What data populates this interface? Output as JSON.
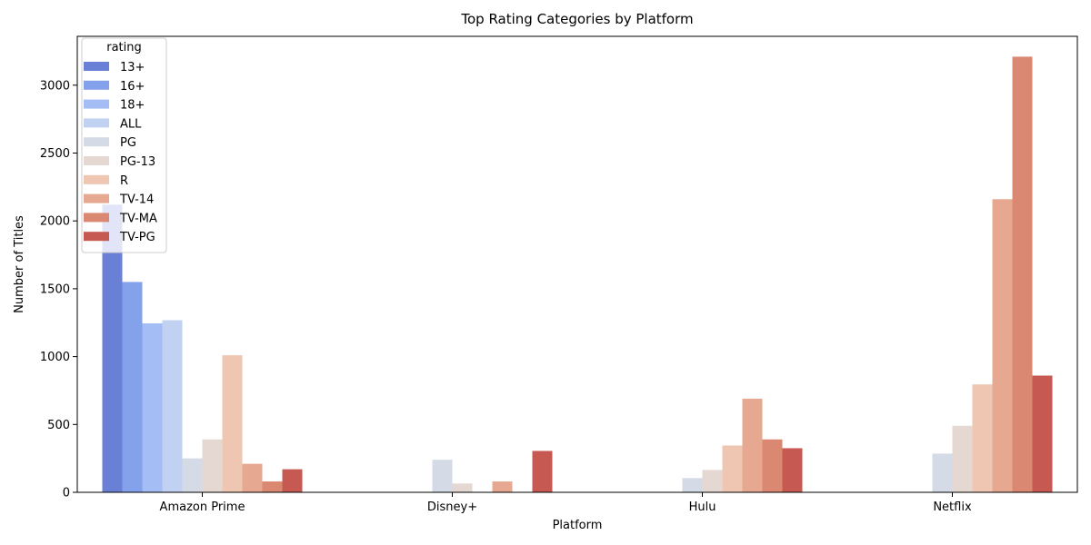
{
  "chart_data": {
    "type": "bar",
    "title": "Top Rating Categories by Platform",
    "xlabel": "Platform",
    "ylabel": "Number of Titles",
    "categories": [
      "Amazon Prime",
      "Disney+",
      "Hulu",
      "Netflix"
    ],
    "ylim": [
      0,
      3360
    ],
    "yticks": [
      0,
      500,
      1000,
      1500,
      2000,
      2500,
      3000
    ],
    "legend": {
      "title": "rating",
      "placement": "top-left"
    },
    "grid": false,
    "series": [
      {
        "name": "13+",
        "color": "#6a7fd6",
        "values": [
          2120,
          0,
          0,
          0
        ]
      },
      {
        "name": "16+",
        "color": "#84a1eb",
        "values": [
          1550,
          0,
          0,
          0
        ]
      },
      {
        "name": "18+",
        "color": "#a4bdf5",
        "values": [
          1245,
          0,
          0,
          0
        ]
      },
      {
        "name": "ALL",
        "color": "#c0d1f1",
        "values": [
          1268,
          0,
          0,
          0
        ]
      },
      {
        "name": "PG",
        "color": "#d4dbe6",
        "values": [
          250,
          240,
          105,
          285
        ]
      },
      {
        "name": "PG-13",
        "color": "#e5d8d2",
        "values": [
          390,
          65,
          165,
          490
        ]
      },
      {
        "name": "R",
        "color": "#efc6b2",
        "values": [
          1010,
          0,
          345,
          795
        ]
      },
      {
        "name": "TV-14",
        "color": "#e6a890",
        "values": [
          210,
          80,
          690,
          2160
        ]
      },
      {
        "name": "TV-MA",
        "color": "#db8872",
        "values": [
          80,
          0,
          390,
          3210
        ]
      },
      {
        "name": "TV-PG",
        "color": "#c65a52",
        "values": [
          170,
          305,
          325,
          860
        ]
      }
    ]
  }
}
